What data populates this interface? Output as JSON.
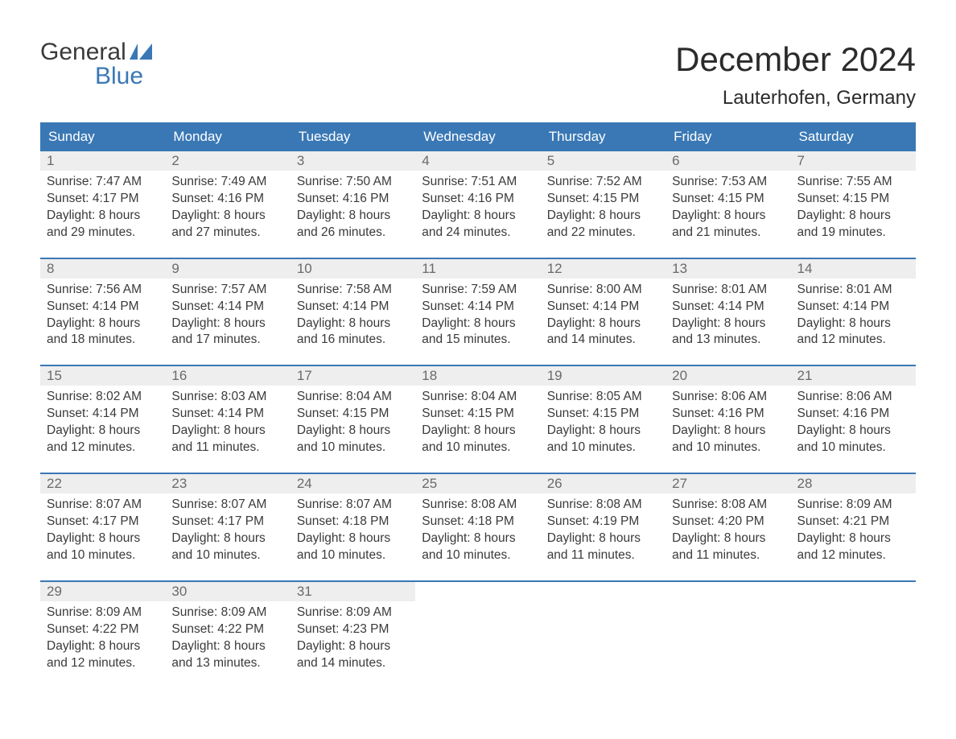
{
  "logo": {
    "line1": "General",
    "line2": "Blue"
  },
  "title": "December 2024",
  "location": "Lauterhofen, Germany",
  "colors": {
    "header_bg": "#3a78b5",
    "header_text": "#ffffff",
    "daynum_bg": "#eeeeee",
    "daynum_text": "#6a6a6a",
    "body_text": "#3a3a3a",
    "rule": "#3a78b5"
  },
  "dow": [
    "Sunday",
    "Monday",
    "Tuesday",
    "Wednesday",
    "Thursday",
    "Friday",
    "Saturday"
  ],
  "weeks": [
    [
      {
        "n": "1",
        "sunrise": "7:47 AM",
        "sunset": "4:17 PM",
        "daylight": "8 hours and 29 minutes."
      },
      {
        "n": "2",
        "sunrise": "7:49 AM",
        "sunset": "4:16 PM",
        "daylight": "8 hours and 27 minutes."
      },
      {
        "n": "3",
        "sunrise": "7:50 AM",
        "sunset": "4:16 PM",
        "daylight": "8 hours and 26 minutes."
      },
      {
        "n": "4",
        "sunrise": "7:51 AM",
        "sunset": "4:16 PM",
        "daylight": "8 hours and 24 minutes."
      },
      {
        "n": "5",
        "sunrise": "7:52 AM",
        "sunset": "4:15 PM",
        "daylight": "8 hours and 22 minutes."
      },
      {
        "n": "6",
        "sunrise": "7:53 AM",
        "sunset": "4:15 PM",
        "daylight": "8 hours and 21 minutes."
      },
      {
        "n": "7",
        "sunrise": "7:55 AM",
        "sunset": "4:15 PM",
        "daylight": "8 hours and 19 minutes."
      }
    ],
    [
      {
        "n": "8",
        "sunrise": "7:56 AM",
        "sunset": "4:14 PM",
        "daylight": "8 hours and 18 minutes."
      },
      {
        "n": "9",
        "sunrise": "7:57 AM",
        "sunset": "4:14 PM",
        "daylight": "8 hours and 17 minutes."
      },
      {
        "n": "10",
        "sunrise": "7:58 AM",
        "sunset": "4:14 PM",
        "daylight": "8 hours and 16 minutes."
      },
      {
        "n": "11",
        "sunrise": "7:59 AM",
        "sunset": "4:14 PM",
        "daylight": "8 hours and 15 minutes."
      },
      {
        "n": "12",
        "sunrise": "8:00 AM",
        "sunset": "4:14 PM",
        "daylight": "8 hours and 14 minutes."
      },
      {
        "n": "13",
        "sunrise": "8:01 AM",
        "sunset": "4:14 PM",
        "daylight": "8 hours and 13 minutes."
      },
      {
        "n": "14",
        "sunrise": "8:01 AM",
        "sunset": "4:14 PM",
        "daylight": "8 hours and 12 minutes."
      }
    ],
    [
      {
        "n": "15",
        "sunrise": "8:02 AM",
        "sunset": "4:14 PM",
        "daylight": "8 hours and 12 minutes."
      },
      {
        "n": "16",
        "sunrise": "8:03 AM",
        "sunset": "4:14 PM",
        "daylight": "8 hours and 11 minutes."
      },
      {
        "n": "17",
        "sunrise": "8:04 AM",
        "sunset": "4:15 PM",
        "daylight": "8 hours and 10 minutes."
      },
      {
        "n": "18",
        "sunrise": "8:04 AM",
        "sunset": "4:15 PM",
        "daylight": "8 hours and 10 minutes."
      },
      {
        "n": "19",
        "sunrise": "8:05 AM",
        "sunset": "4:15 PM",
        "daylight": "8 hours and 10 minutes."
      },
      {
        "n": "20",
        "sunrise": "8:06 AM",
        "sunset": "4:16 PM",
        "daylight": "8 hours and 10 minutes."
      },
      {
        "n": "21",
        "sunrise": "8:06 AM",
        "sunset": "4:16 PM",
        "daylight": "8 hours and 10 minutes."
      }
    ],
    [
      {
        "n": "22",
        "sunrise": "8:07 AM",
        "sunset": "4:17 PM",
        "daylight": "8 hours and 10 minutes."
      },
      {
        "n": "23",
        "sunrise": "8:07 AM",
        "sunset": "4:17 PM",
        "daylight": "8 hours and 10 minutes."
      },
      {
        "n": "24",
        "sunrise": "8:07 AM",
        "sunset": "4:18 PM",
        "daylight": "8 hours and 10 minutes."
      },
      {
        "n": "25",
        "sunrise": "8:08 AM",
        "sunset": "4:18 PM",
        "daylight": "8 hours and 10 minutes."
      },
      {
        "n": "26",
        "sunrise": "8:08 AM",
        "sunset": "4:19 PM",
        "daylight": "8 hours and 11 minutes."
      },
      {
        "n": "27",
        "sunrise": "8:08 AM",
        "sunset": "4:20 PM",
        "daylight": "8 hours and 11 minutes."
      },
      {
        "n": "28",
        "sunrise": "8:09 AM",
        "sunset": "4:21 PM",
        "daylight": "8 hours and 12 minutes."
      }
    ],
    [
      {
        "n": "29",
        "sunrise": "8:09 AM",
        "sunset": "4:22 PM",
        "daylight": "8 hours and 12 minutes."
      },
      {
        "n": "30",
        "sunrise": "8:09 AM",
        "sunset": "4:22 PM",
        "daylight": "8 hours and 13 minutes."
      },
      {
        "n": "31",
        "sunrise": "8:09 AM",
        "sunset": "4:23 PM",
        "daylight": "8 hours and 14 minutes."
      },
      {
        "empty": true
      },
      {
        "empty": true
      },
      {
        "empty": true
      },
      {
        "empty": true
      }
    ]
  ],
  "labels": {
    "sunrise": "Sunrise:",
    "sunset": "Sunset:",
    "daylight": "Daylight:"
  }
}
